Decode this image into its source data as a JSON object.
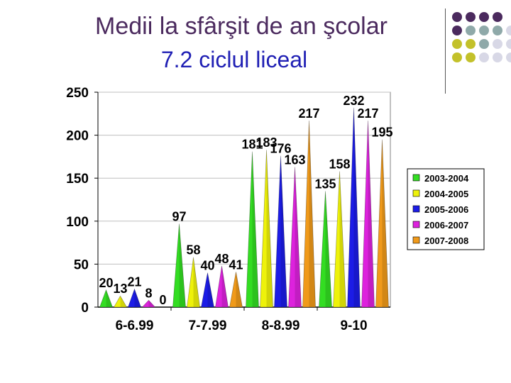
{
  "slide": {
    "title_line1": "Medii la sfârşit de an şcolar",
    "title_line2": "7.2 ciclul liceal"
  },
  "decoration": {
    "dot_colors": [
      "#4b2a5e",
      "#8fa9a9",
      "#c3c12a",
      "#d8d8e6"
    ]
  },
  "chart_data": {
    "type": "bar",
    "shape": "cone",
    "categories": [
      "6-6.99",
      "7-7.99",
      "8-8.99",
      "9-10"
    ],
    "series": [
      {
        "name": "2003-2004",
        "color": "#33dd22",
        "values": [
          20,
          97,
          181,
          135
        ]
      },
      {
        "name": "2004-2005",
        "color": "#eef20a",
        "values": [
          13,
          58,
          183,
          158
        ]
      },
      {
        "name": "2005-2006",
        "color": "#1c1ce6",
        "values": [
          21,
          40,
          176,
          232
        ]
      },
      {
        "name": "2006-2007",
        "color": "#dd22dd",
        "values": [
          8,
          48,
          163,
          217
        ]
      },
      {
        "name": "2007-2008",
        "color": "#f09a1a",
        "values": [
          0,
          41,
          217,
          195
        ]
      }
    ],
    "yticks": [
      0,
      50,
      100,
      150,
      200,
      250
    ],
    "ylim": [
      0,
      250
    ],
    "grid": true,
    "legend_position": "right"
  }
}
